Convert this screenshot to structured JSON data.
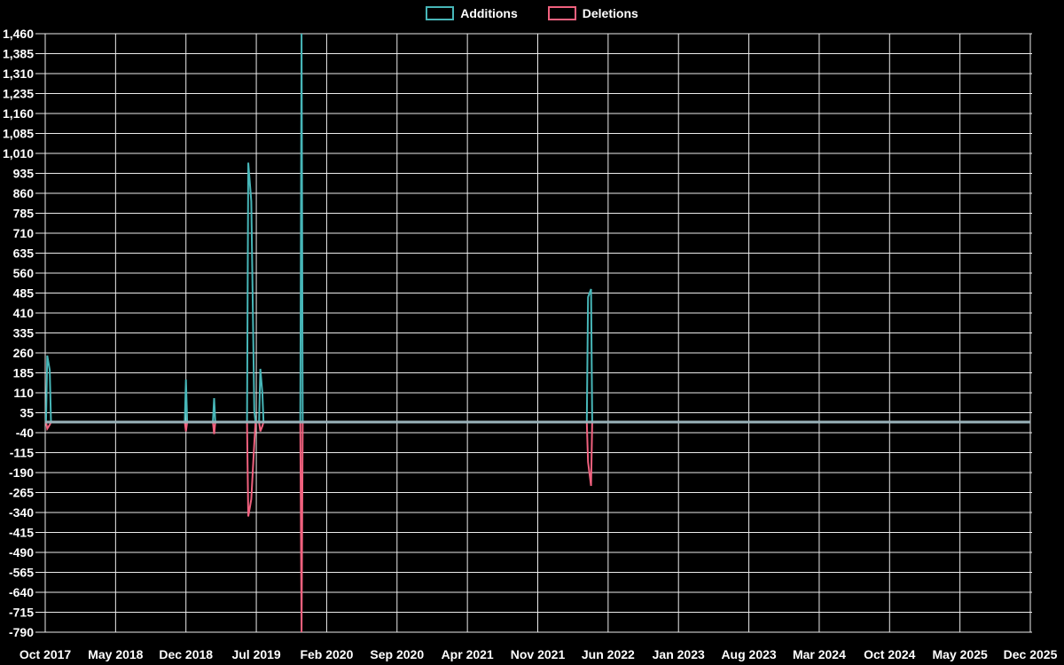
{
  "chart_data": {
    "type": "line",
    "title": "",
    "legend": [
      "Additions",
      "Deletions"
    ],
    "legend_position": "top-center",
    "grid": true,
    "colors": {
      "background": "#000000",
      "text": "#ffffff",
      "grid": "#ececec",
      "additions": "#47b6b8",
      "deletions": "#f0617e",
      "zero_baseline": "#9ab3ba"
    },
    "x_ticks": [
      "Oct 2017",
      "May 2018",
      "Dec 2018",
      "Jul 2019",
      "Feb 2020",
      "Sep 2020",
      "Apr 2021",
      "Nov 2021",
      "Jun 2022",
      "Jan 2023",
      "Aug 2023",
      "Mar 2024",
      "Oct 2024",
      "May 2025",
      "Dec 2025"
    ],
    "y_ticks": [
      "1,460",
      "1,385",
      "1,310",
      "1,235",
      "1,160",
      "1,085",
      "1,010",
      "935",
      "860",
      "785",
      "710",
      "635",
      "560",
      "485",
      "410",
      "335",
      "260",
      "185",
      "110",
      "35",
      "-40",
      "-115",
      "-190",
      "-265",
      "-340",
      "-415",
      "-490",
      "-565",
      "-640",
      "-715",
      "-790"
    ],
    "ylim": [
      -790,
      1460
    ],
    "y_step": 75,
    "x_span_months": 98,
    "series": [
      {
        "name": "Additions",
        "key": "add"
      },
      {
        "name": "Deletions",
        "key": "del"
      }
    ],
    "points": [
      {
        "m": 0.2,
        "add": 250,
        "del": -25
      },
      {
        "m": 0.45,
        "add": 195,
        "del": -10
      },
      {
        "m": 14.0,
        "add": 160,
        "del": -35
      },
      {
        "m": 16.8,
        "add": 90,
        "del": -45
      },
      {
        "m": 20.2,
        "add": 975,
        "del": -355
      },
      {
        "m": 20.5,
        "add": 830,
        "del": -290
      },
      {
        "m": 20.8,
        "add": 40,
        "del": -80
      },
      {
        "m": 21.4,
        "add": 200,
        "del": -35
      },
      {
        "m": 21.6,
        "add": 110,
        "del": -15
      },
      {
        "m": 25.5,
        "add": 1460,
        "del": -790
      },
      {
        "m": 54.0,
        "add": 470,
        "del": -150
      },
      {
        "m": 54.3,
        "add": 500,
        "del": -240
      }
    ]
  }
}
